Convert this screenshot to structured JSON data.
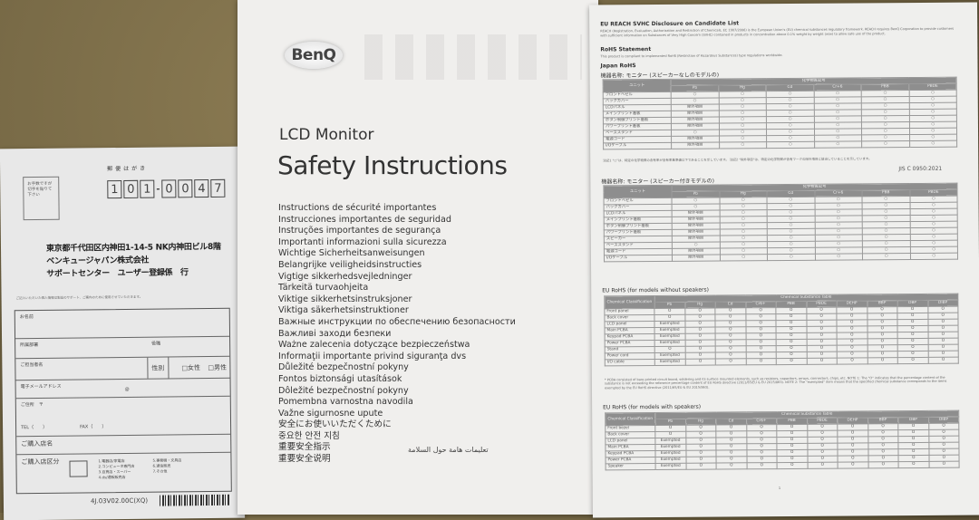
{
  "postcard": {
    "label": "郵便はがき",
    "stamp_note": "お手数ですが切手を貼りて下さい",
    "zip": [
      "1",
      "0",
      "1",
      "0",
      "0",
      "4",
      "7"
    ],
    "address": [
      "東京都千代田区内神田1-14-5 NK内神田ビル8階",
      "ベンキュージャパン株式会社",
      "サポートセンター　ユーザー登録係　行"
    ],
    "intro": "ご記入いただいた個人情報は製品のサポート、ご案内のために使用させていただきます。",
    "fields": {
      "name": "お名前",
      "dept": "所属部署",
      "position": "役職",
      "contact": "ご担当者名",
      "gender": "性別",
      "female": "□女性",
      "male": "□男性",
      "email": "電子メールアドレス",
      "at": "@",
      "address": "ご住所　〒",
      "tel": "TEL（　　）",
      "fax": "FAX（　　）",
      "store": "ご購入店名",
      "store_type": "ご購入店区分",
      "options": [
        "1.電器店/家電店",
        "2.コンピュータ専門店",
        "3.百貨店・スーパー",
        "4.ds/通販販売店",
        "5.事務機・文具店",
        "6.通信販売",
        "7.その他"
      ]
    },
    "code": "4J.03V02.00C(XQ)"
  },
  "booklet": {
    "brand": "BenQ",
    "subtitle": "LCD Monitor",
    "title": "Safety Instructions",
    "languages": [
      "Instructions de sécurité importantes",
      "Instrucciones importantes de seguridad",
      "Instruções importantes de segurança",
      "Importanti informazioni sulla sicurezza",
      "Wichtige Sicherheitsanweisungen",
      "Belangrijke veiligheidsinstructies",
      "Vigtige sikkerhedsvejledninger",
      "Tärkeitä turvaohjeita",
      "Viktige sikkerhetsinstruksjoner",
      "Viktiga säkerhetsinstruktioner",
      "Важные инструкции по обеспечению безопасности",
      "Важливі заходи безпеки",
      "Ważne zalecenia dotyczące bezpieczeństwa",
      "Informaţii importante privind siguranţa dvs",
      "Důležité bezpečnostní pokyny",
      "Fontos biztonsági utasítások",
      "Dôležité bezpečnostní pokyny",
      "Pomembna varnostna navodila",
      "Važne sigurnosne upute",
      "安全にお使いいただくために",
      "중요한 안전 지침",
      "重要安全指示",
      "重要安全说明"
    ],
    "arabic": "تعليمات هامة حول السلامة"
  },
  "sheet": {
    "reach_title": "EU REACH SVHC Disclosure on Candidate List",
    "reach_text": "REACH (Registration, Evaluation, Authorization and Restriction of Chemicals, EC 1907/2006) is the European Union's (EU) chemical substances regulatory framework. REACH requires BenQ Corporation to provide customers with sufficient information on Substances of Very High Concern (SVHC) contained in products in concentration above 0.1% weight by weight (w/w) to allow safe use of the product.",
    "rohs_title": "RoHS Statement",
    "rohs_text": "This product is compliant to implemented RoHS (Restriction of Hazardous Substances) type regulations worldwide.",
    "japan_title": "Japan RoHS",
    "japan1_title": "機器名称: モニター (スピーカーなしのモデルの)",
    "japan2_title": "機器名称: モニター (スピーカー付きモデルの)",
    "eu1_title": "EU RoHS (for models without speakers)",
    "eu2_title": "EU RoHS (for models with speakers)",
    "jp_header": "ユニット",
    "jp_group": "化学物質記号",
    "eu_header": "Chemical Classification",
    "eu_group": "Chemical Substance Table",
    "jp_cols": [
      "Pb",
      "Hg",
      "Cd",
      "Cr+6",
      "PBB",
      "PBDE"
    ],
    "eu_cols": [
      "Pb",
      "Hg",
      "Cd",
      "Cr6+",
      "PBB",
      "PBDE",
      "DEHP",
      "BBP",
      "DBP",
      "DIBP"
    ],
    "jp_rows1": [
      [
        "フロントベゼル",
        "○"
      ],
      [
        "バックカバー",
        "○"
      ],
      [
        "LCDパネル",
        "除外項目"
      ],
      [
        "メインプリント基板",
        "除外項目"
      ],
      [
        "ボタン制御プリント基板",
        "除外項目"
      ],
      [
        "パワープリント基板",
        "除外項目"
      ],
      [
        "ベーススタンド",
        "○"
      ],
      [
        "電源コード",
        "除外項目"
      ],
      [
        "I/Oケーブル",
        "除外項目"
      ]
    ],
    "jp_rows2": [
      [
        "フロントベゼル",
        "○"
      ],
      [
        "バックカバー",
        "○"
      ],
      [
        "LCDパネル",
        "除外項目"
      ],
      [
        "メインプリント基板",
        "除外項目"
      ],
      [
        "ボタン制御プリント基板",
        "除外項目"
      ],
      [
        "パワープリント基板",
        "除外項目"
      ],
      [
        "スピーカー",
        "除外項目"
      ],
      [
        "ベーススタンド",
        "○"
      ],
      [
        "電源コード",
        "除外項目"
      ],
      [
        "I/Oケーブル",
        "除外項目"
      ]
    ],
    "eu_rows1": [
      [
        "Front panel",
        "O"
      ],
      [
        "Back cover",
        "O"
      ],
      [
        "LCD panel",
        "Exempted"
      ],
      [
        "Main PCBA",
        "Exempted"
      ],
      [
        "Keypad PCBA",
        "Exempted"
      ],
      [
        "Power PCBA",
        "Exempted"
      ],
      [
        "Stand",
        "O"
      ],
      [
        "Power cord",
        "Exempted"
      ],
      [
        "I/O cable",
        "Exempted"
      ]
    ],
    "eu_rows2": [
      [
        "Front bezel",
        "O"
      ],
      [
        "Back cover",
        "O"
      ],
      [
        "LCD panel",
        "Exempted"
      ],
      [
        "Main PCBA",
        "Exempted"
      ],
      [
        "Keypad PCBA",
        "Exempted"
      ],
      [
        "Power PCBA",
        "Exempted"
      ],
      [
        "Speaker",
        "Exempted"
      ]
    ],
    "mark_jp": "○",
    "mark_eu": "O",
    "jp_note": "注記1 \"○\"は、特定の化学物質の含有率が含有率基準値以下であることを示しています。 注記2 \"除外項目\"は、特定の化学物質が含有マークの除外項目に該当していることを示しています。",
    "jp_std": "JIS C 0950:2021",
    "eu_note": "* PCBA consisted of bare printed circuit board, soldering and its surface mounted elements, such as resistors, capacitors, arrays, connectors, chips, etc. NOTE 1: The \"O\" indicates that the percentage content of the substance is not exceeding the reference percentage content of EU RoHS directive (2011/65/EU & EU 2015/863). NOTE 2: The \"exempted\" item means that the specified chemical substance corresponds to the items exempted by the EU RoHS directive (2011/65/EU & EU 2015/863).",
    "page": "1"
  }
}
